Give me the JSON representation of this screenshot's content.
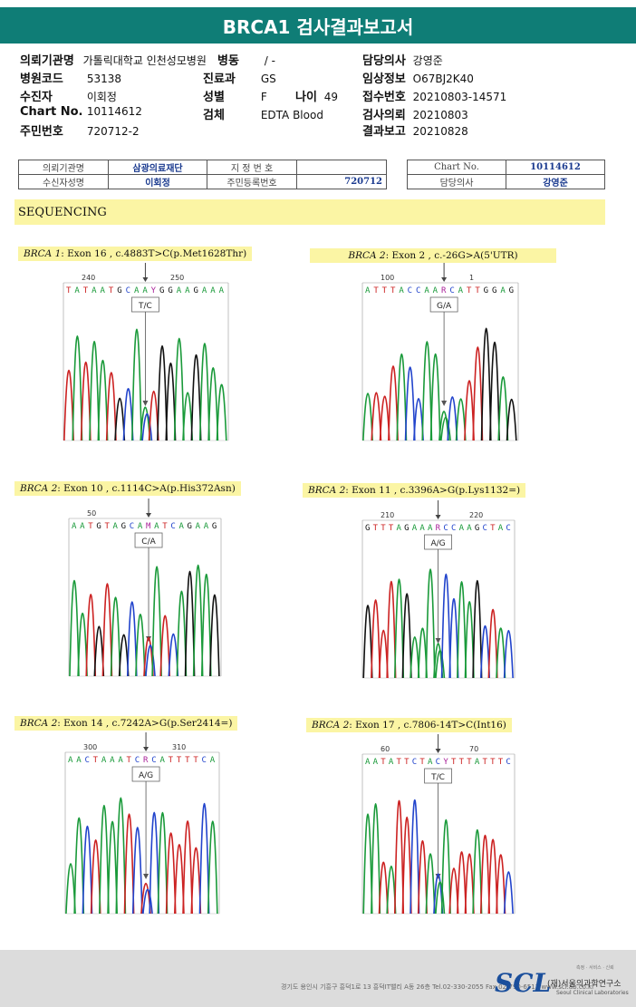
{
  "header": {
    "title": "BRCA1 검사결과보고서"
  },
  "info": {
    "institution_label": "의뢰기관명",
    "institution_value": "가톨릭대학교 인천성모병원",
    "ward_label": "병동",
    "ward_value": "/ -",
    "doctor_label": "담당의사",
    "doctor_value": "강영준",
    "hospital_code_label": "병원코드",
    "hospital_code_value": "53138",
    "dept_label": "진료과",
    "dept_value": "GS",
    "clinical_label": "임상정보",
    "clinical_value": "O67BJ2K40",
    "patient_label": "수진자",
    "patient_value": "이회정",
    "sex_label": "성별",
    "sex_value": "F",
    "age_label": "나이",
    "age_value": "49",
    "receipt_label": "접수번호",
    "receipt_value": "20210803-14571",
    "chart_label": "Chart No.",
    "chart_value": "10114612",
    "specimen_label": "검체",
    "specimen_value": "EDTA Blood",
    "request_label": "검사의뢰",
    "request_value": "20210803",
    "id_label": "주민번호",
    "id_value": "720712-2",
    "report_label": "결과보고",
    "report_value": "20210828"
  },
  "scan_table": {
    "inst_label": "의뢰기관명",
    "inst_value": "삼광의료재단",
    "designation_label": "지 정 번 호",
    "chart_label": "Chart No.",
    "chart_value": "10114612",
    "recipient_label": "수신자성명",
    "recipient_value": "이회정",
    "resident_label": "주민등록번호",
    "resident_value": "720712",
    "doctor_label": "담당의사",
    "doctor_value": "강영준"
  },
  "section": {
    "title": "SEQUENCING"
  },
  "variants": [
    {
      "gene": "BRCA 1",
      "detail": ": Exon 16 , c.4883T>C(p.Met1628Thr)",
      "seq": "TATAATGCAAYGGAAGAAA",
      "pos1": "240",
      "pos2": "250",
      "call": "T/C"
    },
    {
      "gene": "BRCA 2",
      "detail": ": Exon 2 , c.-26G>A(5'UTR)",
      "seq": "ATTTACCAARCATTGGAG",
      "pos1": "100",
      "pos2": "1",
      "call": "G/A"
    },
    {
      "gene": "BRCA 2",
      "detail": ": Exon 10 , c.1114C>A(p.His372Asn)",
      "seq": "AATGTAGCAMATCAGAAG",
      "pos1": "50",
      "pos2": "",
      "call": "C/A"
    },
    {
      "gene": "BRCA 2",
      "detail": ": Exon 11 , c.3396A>G(p.Lys1132=)",
      "seq": "GTTTAGAAARCCAAGCTAC",
      "pos1": "210",
      "pos2": "220",
      "call": "A/G"
    },
    {
      "gene": "BRCA 2",
      "detail": ": Exon 14 , c.7242A>G(p.Ser2414=)",
      "seq": "AACTAAATCRCATTTTCA",
      "pos1": "300",
      "pos2": "310",
      "call": "A/G"
    },
    {
      "gene": "BRCA 2",
      "detail": ": Exon 17 , c.7806-14T>C(Int16)",
      "seq": "AATATTCTACYTTTATTTC",
      "pos1": "60",
      "pos2": "70",
      "call": "T/C"
    }
  ],
  "footer": {
    "address": "경기도 용인시 기흥구 흥덕1로 13 흥덕IT밸리 A동 26층  Tel.02-330-2055  Fax.02-790-6517  www.scl.ab.co.kr",
    "logo": "SCL",
    "org": "(재)서울의과학연구소",
    "org_en": "Seoul Clinical Laboratories",
    "tagline": "측정 · 서비스 · 신뢰"
  }
}
